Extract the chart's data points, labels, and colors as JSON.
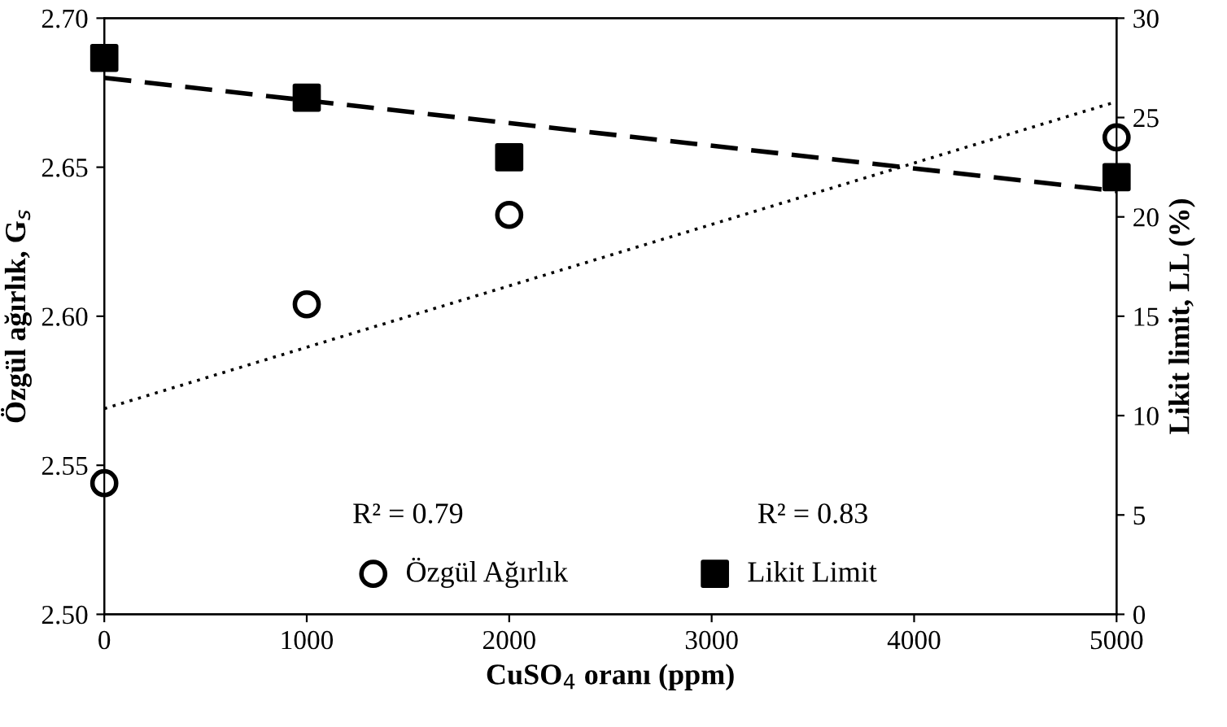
{
  "chart_data": {
    "type": "scatter",
    "xlabel": "CuSO$_{4}$ oranı (ppm)",
    "ylabel": "Özgül ağırlık, G$_{s}$",
    "y2label": "Likit limit, LL (%)",
    "xlim": [
      0,
      5000
    ],
    "xticks": [
      0,
      1000,
      2000,
      3000,
      4000,
      5000
    ],
    "ylim": [
      2.5,
      2.7
    ],
    "yticks": [
      {
        "value": 2.5,
        "label": "2.50"
      },
      {
        "value": 2.55,
        "label": "2.55"
      },
      {
        "value": 2.6,
        "label": "2.60"
      },
      {
        "value": 2.65,
        "label": "2.65"
      },
      {
        "value": 2.7,
        "label": "2.70"
      }
    ],
    "y2lim": [
      0,
      30
    ],
    "y2ticks": [
      0,
      5,
      10,
      15,
      20,
      25,
      30
    ],
    "grid": false,
    "legend": "bottom",
    "series": [
      {
        "name": "Özgül Ağırlık",
        "marker": "circle",
        "color": "#000000",
        "x": [
          0,
          1000,
          2000,
          5000
        ],
        "values": [
          2.544,
          2.604,
          2.634,
          2.66
        ]
      },
      {
        "name": "Likit Limit",
        "marker": "square",
        "color": "#000000",
        "axis": "y2",
        "x": [
          0,
          1000,
          2000,
          5000
        ],
        "values": [
          28,
          26,
          23,
          22
        ]
      },
      {
        "type": "line",
        "line_style": "dotted",
        "color": "#000000",
        "x": [
          0,
          5000
        ],
        "values": [
          2.569,
          2.672
        ]
      },
      {
        "type": "line",
        "line_style": "dashed",
        "color": "#000000",
        "axis": "y2",
        "x": [
          0,
          5000
        ],
        "values": [
          27.0,
          21.3
        ]
      }
    ],
    "annotations": [
      "R² = 0.79",
      "R² = 0.83"
    ]
  }
}
